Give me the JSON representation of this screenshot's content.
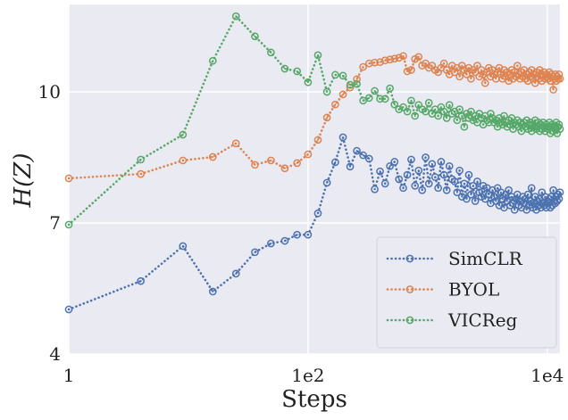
{
  "chart_data": {
    "type": "line",
    "title": "",
    "xlabel": "Steps",
    "ylabel": "H(Z)",
    "xscale": "log",
    "xlim": [
      1,
      12769
    ],
    "ylim": [
      4,
      12
    ],
    "xticks": [
      {
        "value": 1,
        "label": "1"
      },
      {
        "value": 100,
        "label": "1e2"
      },
      {
        "value": 10000,
        "label": "1e4"
      }
    ],
    "yticks": [
      {
        "value": 4,
        "label": "4"
      },
      {
        "value": 7,
        "label": "7"
      },
      {
        "value": 10,
        "label": "10"
      }
    ],
    "grid": true,
    "legend_position": "bottom-right",
    "background": "#EAEAF2",
    "x": [
      1,
      4,
      9,
      16,
      25,
      36,
      49,
      64,
      81,
      100,
      121,
      144,
      169,
      196,
      225,
      256,
      289,
      324,
      361,
      400,
      441,
      484,
      529,
      576,
      625,
      676,
      729,
      784,
      841,
      900,
      961,
      1024,
      1089,
      1156,
      1225,
      1296,
      1369,
      1444,
      1521,
      1600,
      1681,
      1764,
      1849,
      1936,
      2025,
      2116,
      2209,
      2304,
      2401,
      2500,
      2601,
      2704,
      2809,
      2916,
      3025,
      3136,
      3249,
      3364,
      3481,
      3600,
      3721,
      3844,
      3969,
      4096,
      4225,
      4356,
      4489,
      4624,
      4761,
      4900,
      5041,
      5184,
      5329,
      5476,
      5625,
      5776,
      5929,
      6084,
      6241,
      6400,
      6561,
      6724,
      6889,
      7056,
      7225,
      7396,
      7569,
      7744,
      7921,
      8100,
      8281,
      8464,
      8649,
      8836,
      9025,
      9216,
      9409,
      9604,
      9801,
      10000,
      10201,
      10404,
      10609,
      10816,
      11025,
      11236,
      11449,
      11664,
      11881,
      12100,
      12321,
      12544,
      12769
    ],
    "series": [
      {
        "name": "SimCLR",
        "color": "#4C72B0",
        "values": [
          5.02,
          5.67,
          6.47,
          5.43,
          5.84,
          6.33,
          6.53,
          6.59,
          6.73,
          6.73,
          7.22,
          7.92,
          8.39,
          8.96,
          8.29,
          8.65,
          8.55,
          8.47,
          7.77,
          8.18,
          7.9,
          8.3,
          8.4,
          8.0,
          7.8,
          8.1,
          8.45,
          7.85,
          8.2,
          7.75,
          8.5,
          7.9,
          8.35,
          8.05,
          7.8,
          8.4,
          8.1,
          7.75,
          8.3,
          8.0,
          7.95,
          7.7,
          8.2,
          7.6,
          7.9,
          7.55,
          8.1,
          7.65,
          7.85,
          7.5,
          7.95,
          7.7,
          7.6,
          7.85,
          7.55,
          7.8,
          7.65,
          7.45,
          7.75,
          7.6,
          7.5,
          7.8,
          7.4,
          7.7,
          7.55,
          7.35,
          7.65,
          7.5,
          7.75,
          7.4,
          7.6,
          7.45,
          7.3,
          7.55,
          7.65,
          7.4,
          7.5,
          7.35,
          7.6,
          7.45,
          7.55,
          7.3,
          7.65,
          7.4,
          7.5,
          7.8,
          7.35,
          7.45,
          7.6,
          7.3,
          7.5,
          7.4,
          7.55,
          7.35,
          7.7,
          7.45,
          7.4,
          7.6,
          7.35,
          7.5,
          7.45,
          7.55,
          7.35,
          7.6,
          7.4,
          7.75,
          7.5,
          7.45,
          7.6,
          7.5,
          7.65,
          7.55,
          7.7
        ]
      },
      {
        "name": "BYOL",
        "color": "#DD8452",
        "values": [
          8.02,
          8.12,
          8.43,
          8.51,
          8.82,
          8.33,
          8.43,
          8.25,
          8.37,
          8.57,
          8.9,
          9.41,
          9.71,
          9.94,
          10.1,
          10.29,
          10.57,
          10.65,
          10.67,
          10.68,
          10.72,
          10.74,
          10.76,
          10.78,
          10.82,
          10.47,
          10.5,
          10.75,
          10.8,
          10.6,
          10.65,
          10.55,
          10.6,
          10.5,
          10.45,
          10.55,
          10.65,
          10.5,
          10.4,
          10.6,
          10.45,
          10.55,
          10.35,
          10.6,
          10.5,
          10.4,
          10.55,
          10.3,
          10.5,
          10.45,
          10.6,
          10.35,
          10.5,
          10.4,
          10.2,
          10.45,
          10.55,
          10.35,
          10.5,
          10.4,
          10.3,
          10.45,
          10.55,
          10.4,
          10.3,
          10.5,
          10.35,
          10.45,
          10.25,
          10.4,
          10.5,
          10.3,
          10.45,
          10.35,
          10.6,
          10.4,
          10.3,
          10.45,
          10.35,
          10.5,
          10.3,
          10.4,
          10.25,
          10.45,
          10.35,
          10.5,
          10.3,
          10.4,
          10.2,
          10.45,
          10.35,
          10.3,
          10.5,
          10.4,
          10.25,
          10.35,
          10.45,
          10.3,
          10.4,
          10.35,
          10.3,
          10.45,
          10.25,
          10.4,
          10.35,
          10.05,
          10.3,
          10.4,
          10.25,
          10.35,
          10.3,
          10.4,
          10.3
        ]
      },
      {
        "name": "VICReg",
        "color": "#55A868",
        "values": [
          6.96,
          8.45,
          9.02,
          10.71,
          11.73,
          11.27,
          10.9,
          10.53,
          10.47,
          10.22,
          10.84,
          10.0,
          10.39,
          10.37,
          10.16,
          10.18,
          9.8,
          9.86,
          10.02,
          9.84,
          9.84,
          10.08,
          9.71,
          9.6,
          9.65,
          9.55,
          9.8,
          9.45,
          9.7,
          9.6,
          9.55,
          9.75,
          9.5,
          9.6,
          9.45,
          9.65,
          9.55,
          9.4,
          9.7,
          9.5,
          9.55,
          9.35,
          9.6,
          9.45,
          9.2,
          9.5,
          9.4,
          9.55,
          9.35,
          9.45,
          9.3,
          9.5,
          9.4,
          9.25,
          9.45,
          9.35,
          9.3,
          9.5,
          9.4,
          9.3,
          9.35,
          9.2,
          9.4,
          9.3,
          9.25,
          9.45,
          9.3,
          9.2,
          9.35,
          9.25,
          9.4,
          9.15,
          9.3,
          9.25,
          9.35,
          9.2,
          9.3,
          9.1,
          9.25,
          9.3,
          9.2,
          9.35,
          9.15,
          9.25,
          9.3,
          9.1,
          9.25,
          9.2,
          9.35,
          9.15,
          9.2,
          9.3,
          9.1,
          9.25,
          9.15,
          9.3,
          9.2,
          9.1,
          9.25,
          9.2,
          9.15,
          9.3,
          9.05,
          9.2,
          9.25,
          9.1,
          9.2,
          9.15,
          9.3,
          9.05,
          9.2,
          9.25,
          9.15
        ]
      }
    ]
  }
}
